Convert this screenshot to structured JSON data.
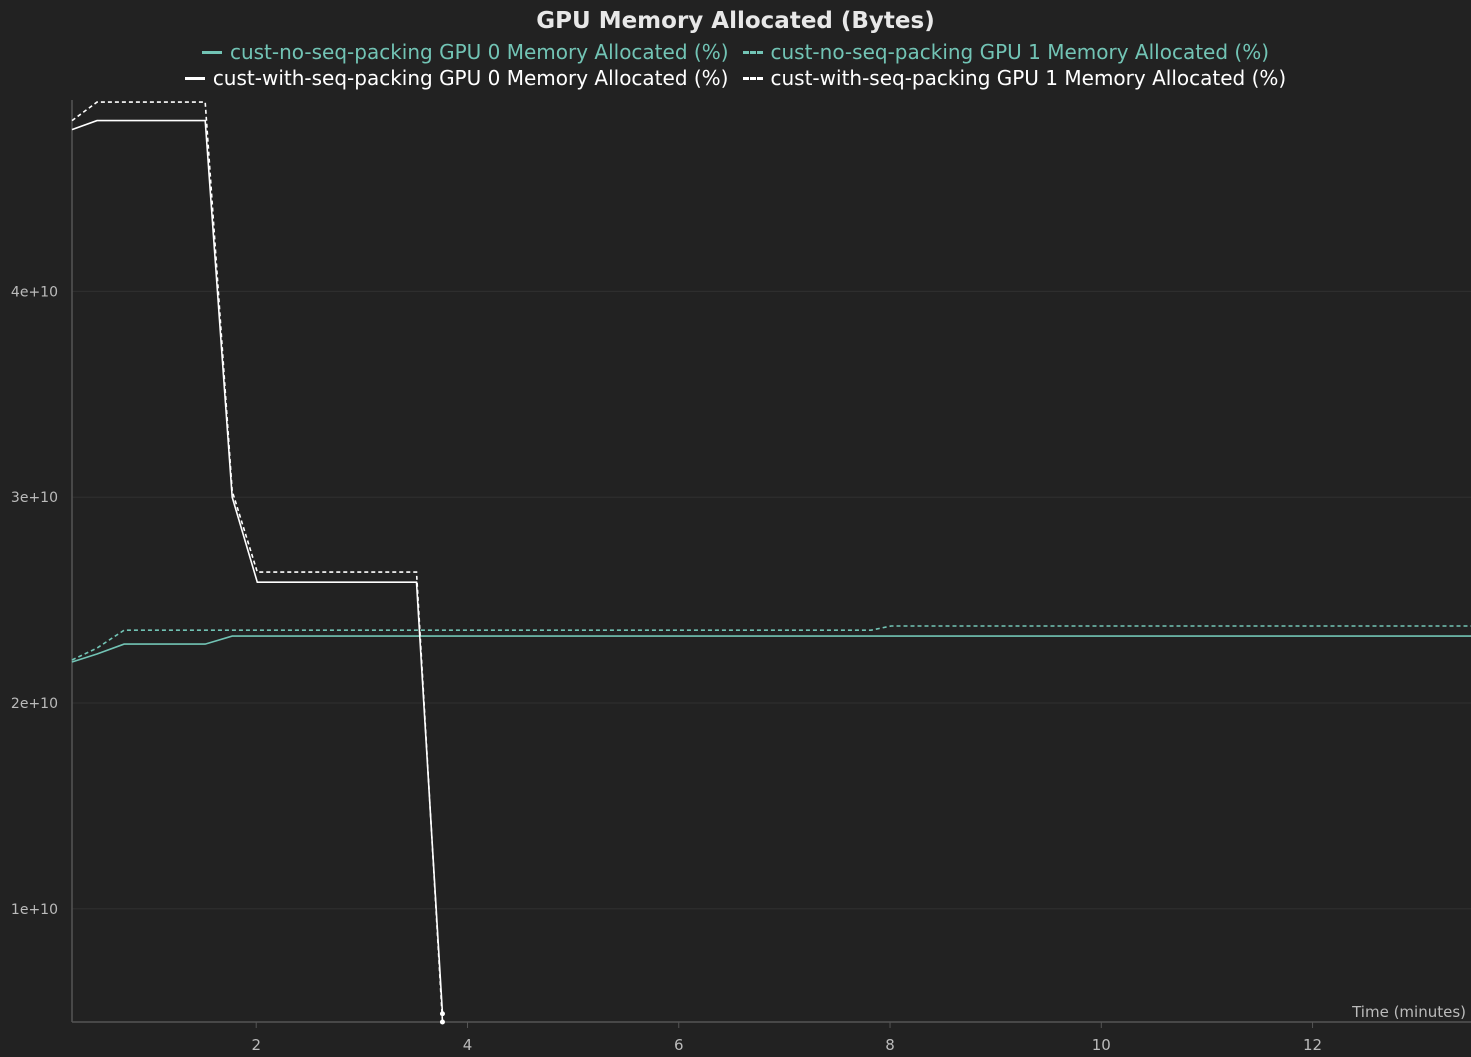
{
  "chart_data": {
    "type": "line",
    "title": "GPU Memory Allocated (Bytes)",
    "xlabel": "Time (minutes)",
    "ylabel": "",
    "xlim": [
      0.256,
      13.5
    ],
    "ylim": [
      4500000000.0,
      49300000000.0
    ],
    "grid": true,
    "legend_placement": "top-center",
    "x_ticks": [
      2,
      4,
      6,
      8,
      10,
      12
    ],
    "x_tick_labels": [
      "2",
      "4",
      "6",
      "8",
      "10",
      "12"
    ],
    "y_ticks": [
      10000000000.0,
      20000000000.0,
      30000000000.0,
      40000000000.0
    ],
    "y_tick_labels": [
      "1e+10",
      "2e+10",
      "3e+10",
      "4e+10"
    ],
    "series": [
      {
        "name": "cust-no-seq-packing GPU 0 Memory Allocated (%)",
        "color": "#72c4b5",
        "dash": false,
        "x": [
          0.256,
          0.493,
          0.749,
          1.517,
          1.773,
          13.5
        ],
        "y": [
          21990000000.0,
          22380000000.0,
          22860000000.0,
          22860000000.0,
          23250000000.0,
          23250000000.0
        ]
      },
      {
        "name": "cust-no-seq-packing GPU 1 Memory Allocated (%)",
        "color": "#72c4b5",
        "dash": true,
        "x": [
          0.256,
          0.493,
          0.749,
          7.82,
          8.01,
          13.5
        ],
        "y": [
          22090000000.0,
          22670000000.0,
          23540000000.0,
          23540000000.0,
          23740000000.0,
          23740000000.0
        ]
      },
      {
        "name": "cust-with-seq-packing GPU 0 Memory Allocated (%)",
        "color": "#ffffff",
        "dash": false,
        "x": [
          0.256,
          0.493,
          1.517,
          1.773,
          2.01,
          3.517,
          3.763
        ],
        "y": [
          47860000000.0,
          48300000000.0,
          48300000000.0,
          30000000000.0,
          25870000000.0,
          25870000000.0,
          4900000000.0
        ]
      },
      {
        "name": "cust-with-seq-packing GPU 1 Memory Allocated (%)",
        "color": "#ffffff",
        "dash": true,
        "x": [
          0.256,
          0.493,
          1.517,
          1.773,
          2.01,
          3.517,
          3.763
        ],
        "y": [
          48300000000.0,
          49200000000.0,
          49200000000.0,
          30300000000.0,
          26360000000.0,
          26360000000.0,
          4500000000.0
        ]
      }
    ]
  }
}
